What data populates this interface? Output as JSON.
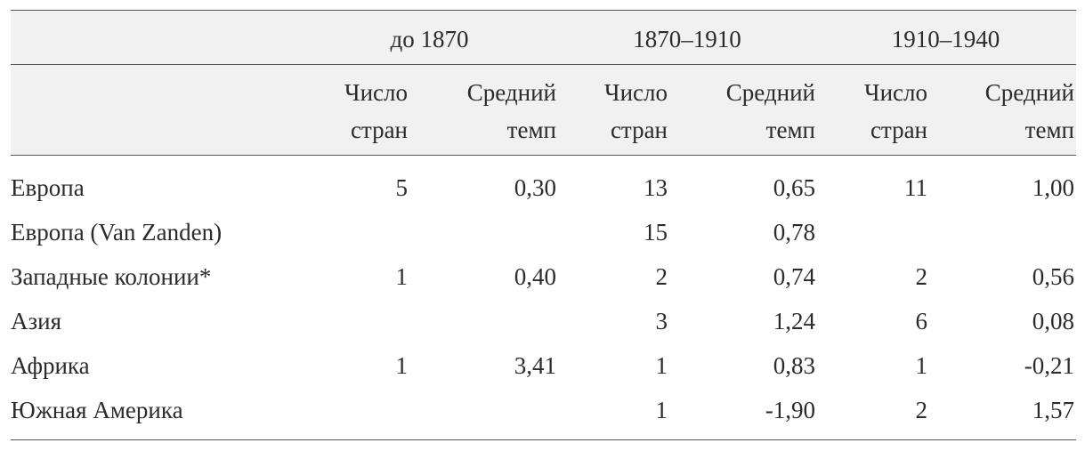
{
  "table": {
    "groups": [
      "до 1870",
      "1870–1910",
      "1910–1940"
    ],
    "subheaders": [
      [
        "Число",
        "стран"
      ],
      [
        "Средний",
        "темп"
      ]
    ],
    "rows": [
      {
        "label": "Европа",
        "cells": [
          "5",
          "0,30",
          "13",
          "0,65",
          "11",
          "1,00"
        ]
      },
      {
        "label": "Европа (Van Zanden)",
        "cells": [
          null,
          null,
          "15",
          "0,78",
          null,
          null
        ]
      },
      {
        "label": "Западные колонии*",
        "cells": [
          "1",
          "0,40",
          "2",
          "0,74",
          "2",
          "0,56"
        ]
      },
      {
        "label": "Азия",
        "cells": [
          null,
          null,
          "3",
          "1,24",
          "6",
          "0,08"
        ]
      },
      {
        "label": "Африка",
        "cells": [
          "1",
          "3,41",
          "1",
          "0,83",
          "1",
          "-0,21"
        ]
      },
      {
        "label": "Южная Америка",
        "cells": [
          null,
          null,
          "1",
          "-1,90",
          "2",
          "1,57"
        ]
      }
    ]
  }
}
